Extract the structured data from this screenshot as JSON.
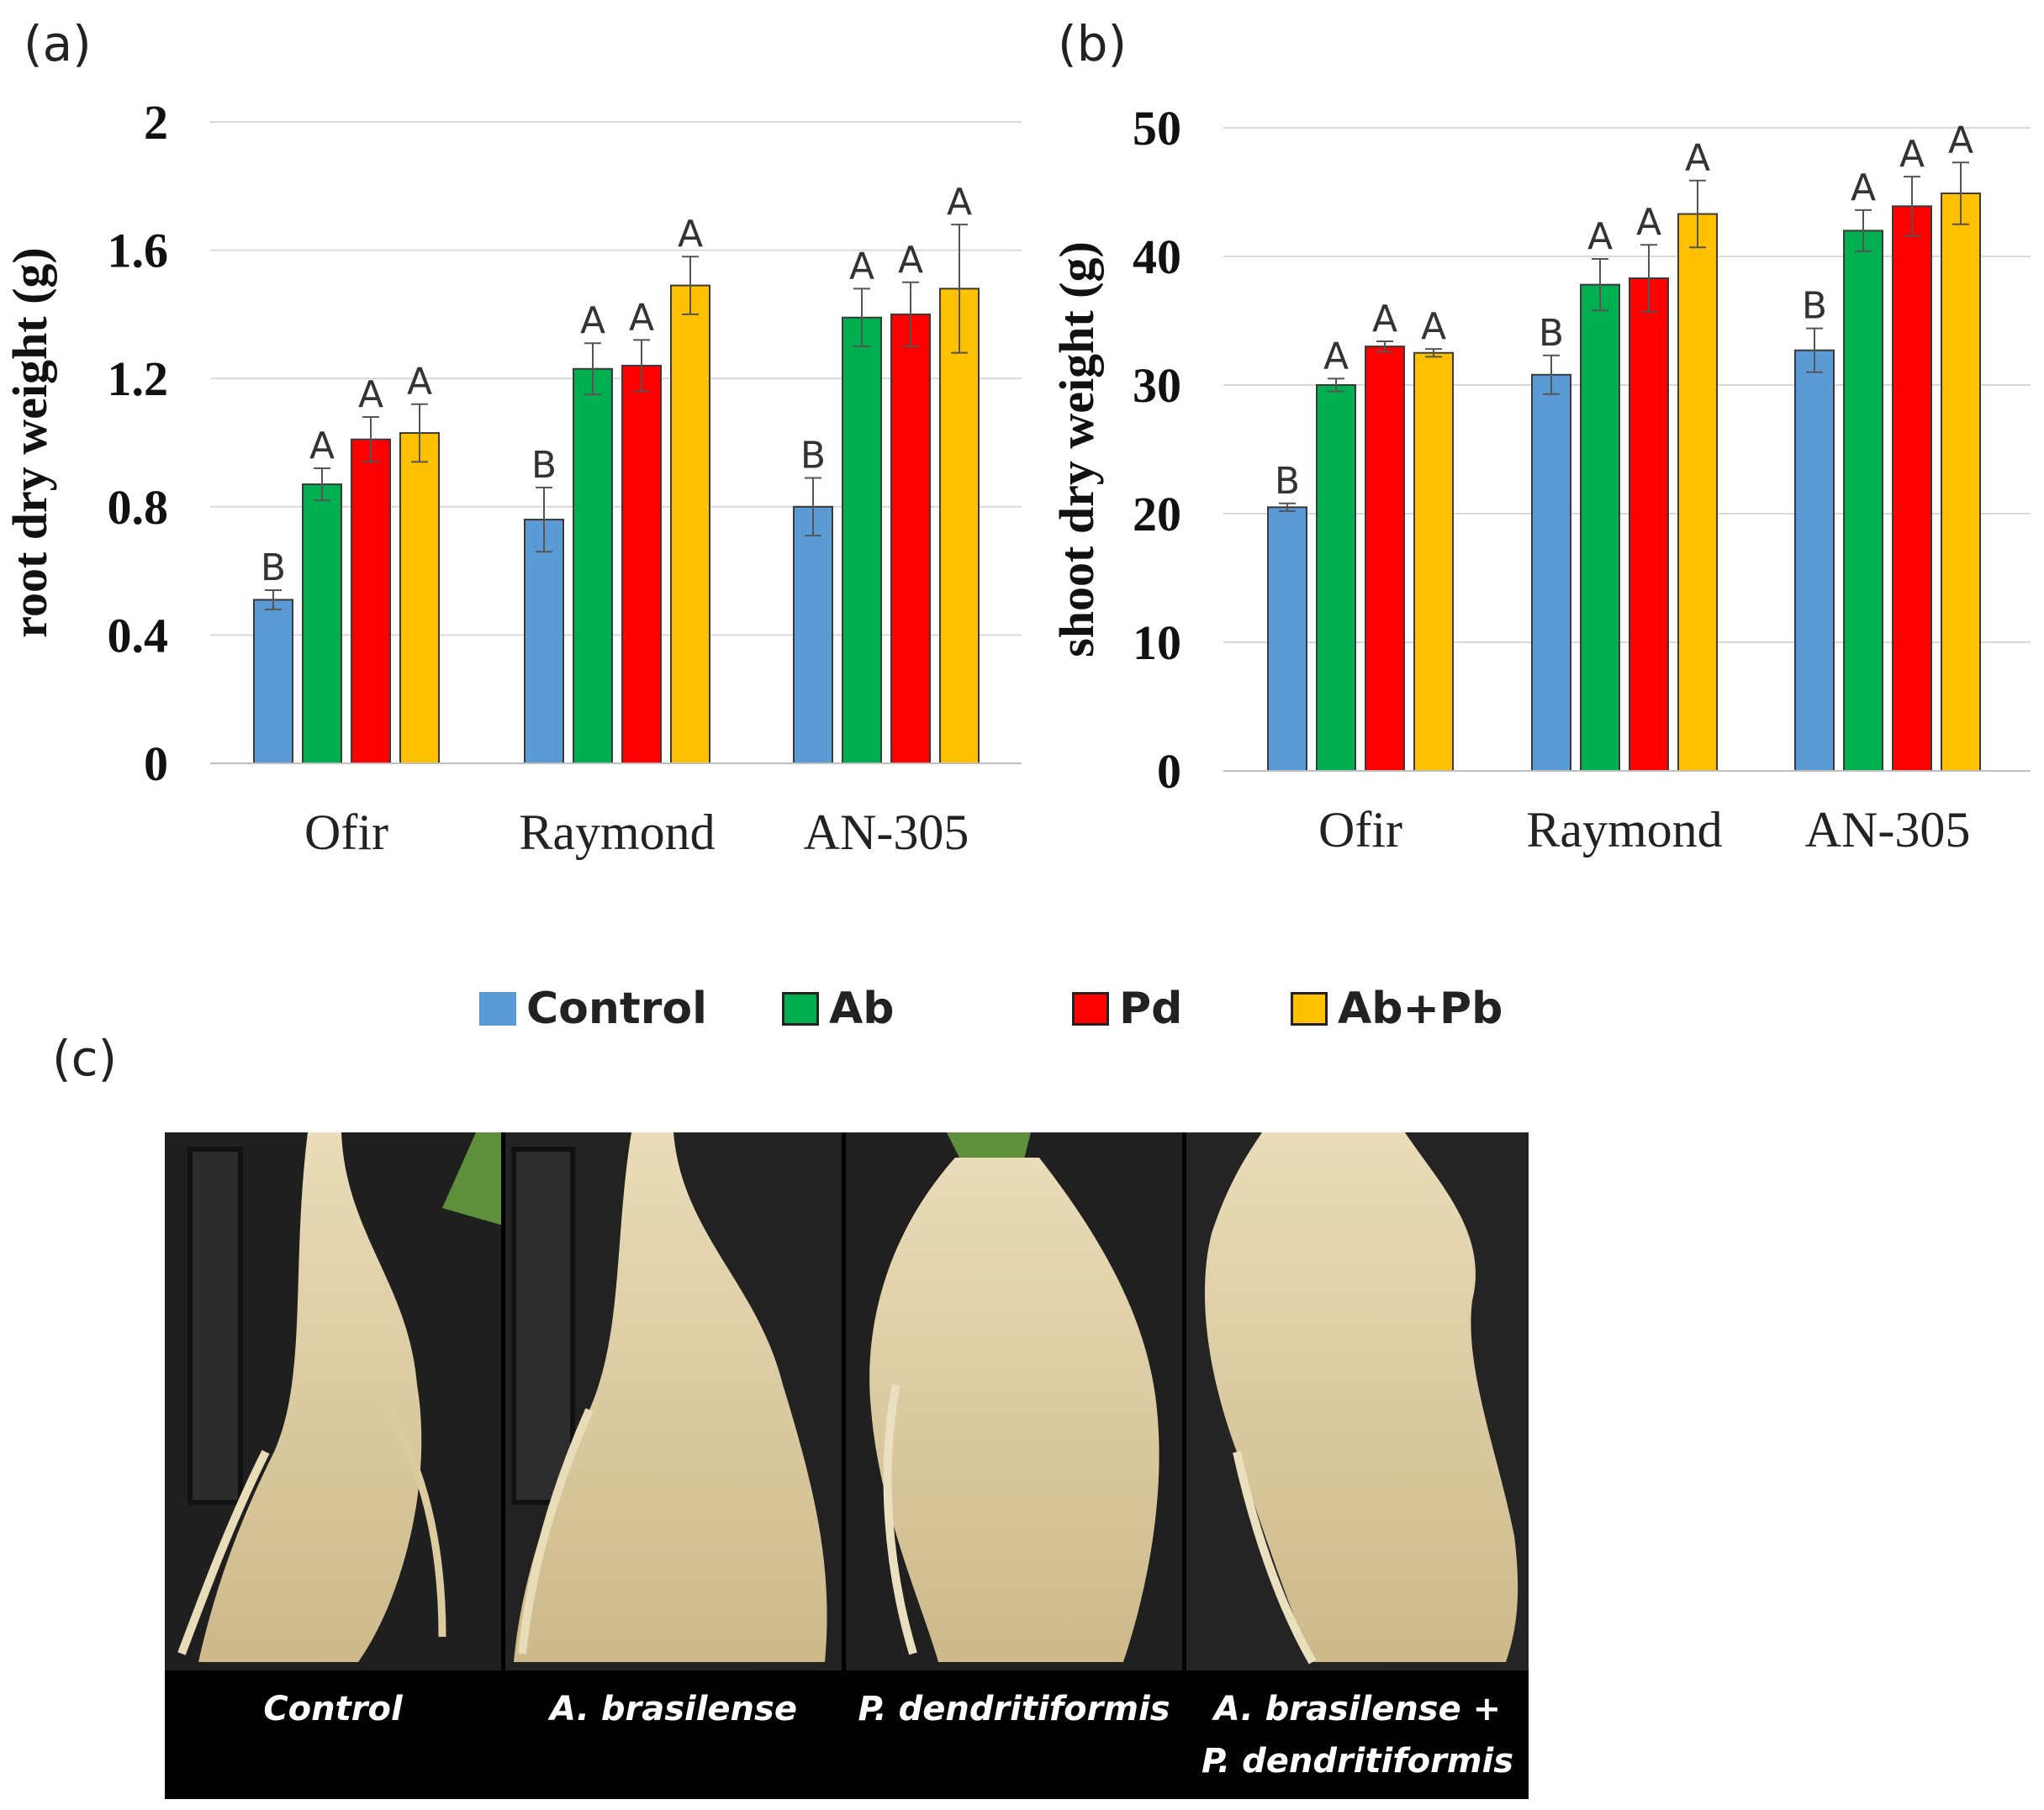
{
  "panels": {
    "a": "(a)",
    "b": "(b)",
    "c": "(c)"
  },
  "legend": [
    {
      "label": "Control",
      "color": "#5b9bd5"
    },
    {
      "label": "Ab",
      "color": "#00b050"
    },
    {
      "label": "Pd",
      "color": "#ff0000"
    },
    {
      "label": "Ab+Pb",
      "color": "#ffc000"
    }
  ],
  "photo_captions": [
    "Control",
    "A. brasilense",
    "P. dendritiformis",
    "A. brasilense +",
    "P. dendritiformis"
  ],
  "chart_data": [
    {
      "type": "bar",
      "ylabel": "root dry weight (g)",
      "categories": [
        "Ofir",
        "Raymond",
        "AN-305"
      ],
      "ylim": [
        0,
        2
      ],
      "yticks": [
        "0",
        "0.4",
        "0.8",
        "1.2",
        "1.6",
        "2"
      ],
      "tick_values": [
        0,
        0.4,
        0.8,
        1.2,
        1.6,
        2
      ],
      "grid": true,
      "series": [
        {
          "name": "Control",
          "values": [
            0.51,
            0.76,
            0.8
          ],
          "errors": [
            0.03,
            0.1,
            0.09
          ],
          "letters": [
            "B",
            "B",
            "B"
          ]
        },
        {
          "name": "Ab",
          "values": [
            0.87,
            1.23,
            1.39
          ],
          "errors": [
            0.05,
            0.08,
            0.09
          ],
          "letters": [
            "A",
            "A",
            "A"
          ]
        },
        {
          "name": "Pd",
          "values": [
            1.01,
            1.24,
            1.4
          ],
          "errors": [
            0.07,
            0.08,
            0.1
          ],
          "letters": [
            "A",
            "A",
            "A"
          ]
        },
        {
          "name": "Ab+Pb",
          "values": [
            1.03,
            1.49,
            1.48
          ],
          "errors": [
            0.09,
            0.09,
            0.2
          ],
          "letters": [
            "A",
            "A",
            "A"
          ]
        }
      ]
    },
    {
      "type": "bar",
      "ylabel": "shoot dry weight (g)",
      "categories": [
        "Ofir",
        "Raymond",
        "AN-305"
      ],
      "ylim": [
        0,
        50
      ],
      "yticks": [
        "0",
        "10",
        "20",
        "30",
        "40",
        "50"
      ],
      "tick_values": [
        0,
        10,
        20,
        30,
        40,
        50
      ],
      "grid": true,
      "series": [
        {
          "name": "Control",
          "values": [
            20.5,
            30.8,
            32.7
          ],
          "errors": [
            0.3,
            1.5,
            1.7
          ],
          "letters": [
            "B",
            "B",
            "B"
          ]
        },
        {
          "name": "Ab",
          "values": [
            30.0,
            37.8,
            42.0
          ],
          "errors": [
            0.5,
            2.0,
            1.6
          ],
          "letters": [
            "A",
            "A",
            "A"
          ]
        },
        {
          "name": "Pd",
          "values": [
            33.0,
            38.3,
            43.9
          ],
          "errors": [
            0.4,
            2.6,
            2.3
          ],
          "letters": [
            "A",
            "A",
            "A"
          ]
        },
        {
          "name": "Ab+Pb",
          "values": [
            32.5,
            43.3,
            44.9
          ],
          "errors": [
            0.3,
            2.6,
            2.4
          ],
          "letters": [
            "A",
            "A",
            "A"
          ]
        }
      ]
    }
  ]
}
